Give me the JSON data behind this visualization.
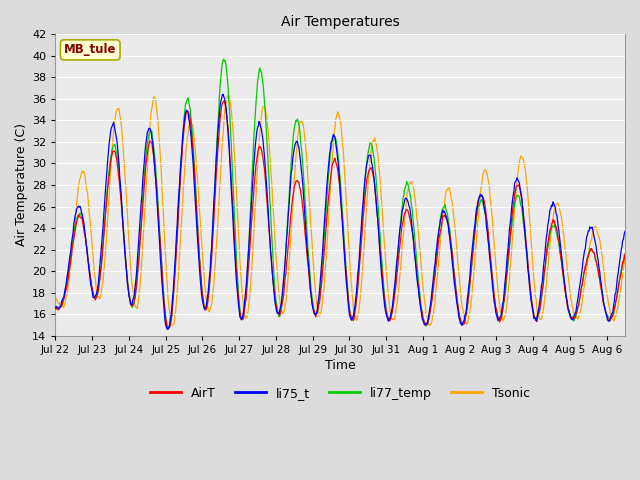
{
  "title": "Air Temperatures",
  "xlabel": "Time",
  "ylabel": "Air Temperature (C)",
  "ylim": [
    14,
    42
  ],
  "yticks": [
    14,
    16,
    18,
    20,
    22,
    24,
    26,
    28,
    30,
    32,
    34,
    36,
    38,
    40,
    42
  ],
  "annotation_text": "MB_tule",
  "annotation_color": "#8B0000",
  "annotation_bg": "#FFFFD0",
  "annotation_border": "#AAAA00",
  "colors": {
    "AirT": "#FF0000",
    "li75_t": "#0000FF",
    "li77_temp": "#00CC00",
    "Tsonic": "#FFA500"
  },
  "bg_color": "#DCDCDC",
  "plot_bg": "#EBEBEB",
  "grid_color": "#FFFFFF",
  "tick_labels": [
    "Jul 22",
    "Jul 23",
    "Jul 24",
    "Jul 25",
    "Jul 26",
    "Jul 27",
    "Jul 28",
    "Jul 29",
    "Jul 30",
    "Jul 31",
    "Aug 1",
    "Aug 2",
    "Aug 3",
    "Aug 4",
    "Aug 5",
    "Aug 6"
  ],
  "figsize": [
    6.4,
    4.8
  ],
  "dpi": 100
}
